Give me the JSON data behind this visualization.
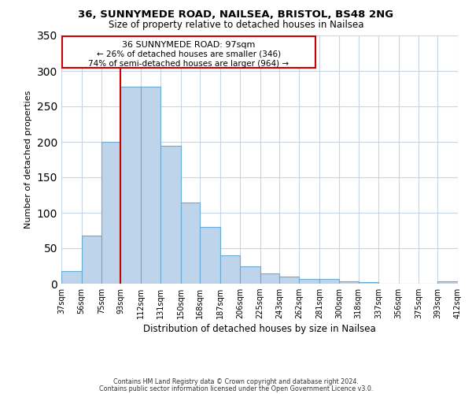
{
  "title1": "36, SUNNYMEDE ROAD, NAILSEA, BRISTOL, BS48 2NG",
  "title2": "Size of property relative to detached houses in Nailsea",
  "xlabel": "Distribution of detached houses by size in Nailsea",
  "ylabel": "Number of detached properties",
  "footer1": "Contains HM Land Registry data © Crown copyright and database right 2024.",
  "footer2": "Contains public sector information licensed under the Open Government Licence v3.0.",
  "bin_labels": [
    "37sqm",
    "56sqm",
    "75sqm",
    "93sqm",
    "112sqm",
    "131sqm",
    "150sqm",
    "168sqm",
    "187sqm",
    "206sqm",
    "225sqm",
    "243sqm",
    "262sqm",
    "281sqm",
    "300sqm",
    "318sqm",
    "337sqm",
    "356sqm",
    "375sqm",
    "393sqm",
    "412sqm"
  ],
  "bar_values": [
    18,
    68,
    200,
    278,
    278,
    195,
    114,
    80,
    40,
    25,
    15,
    10,
    7,
    7,
    3,
    2,
    0,
    0,
    0,
    3
  ],
  "bar_color": "#bed4ea",
  "bar_edge_color": "#6aaad4",
  "property_line_x": 93,
  "property_line_label": "36 SUNNYMEDE ROAD: 97sqm",
  "annotation_line1": "← 26% of detached houses are smaller (346)",
  "annotation_line2": "74% of semi-detached houses are larger (964) →",
  "annotation_box_edge": "#cc0000",
  "property_line_color": "#cc0000",
  "ylim": [
    0,
    350
  ],
  "yticks": [
    0,
    50,
    100,
    150,
    200,
    250,
    300,
    350
  ],
  "background_color": "#ffffff",
  "grid_color": "#c8d4e4"
}
